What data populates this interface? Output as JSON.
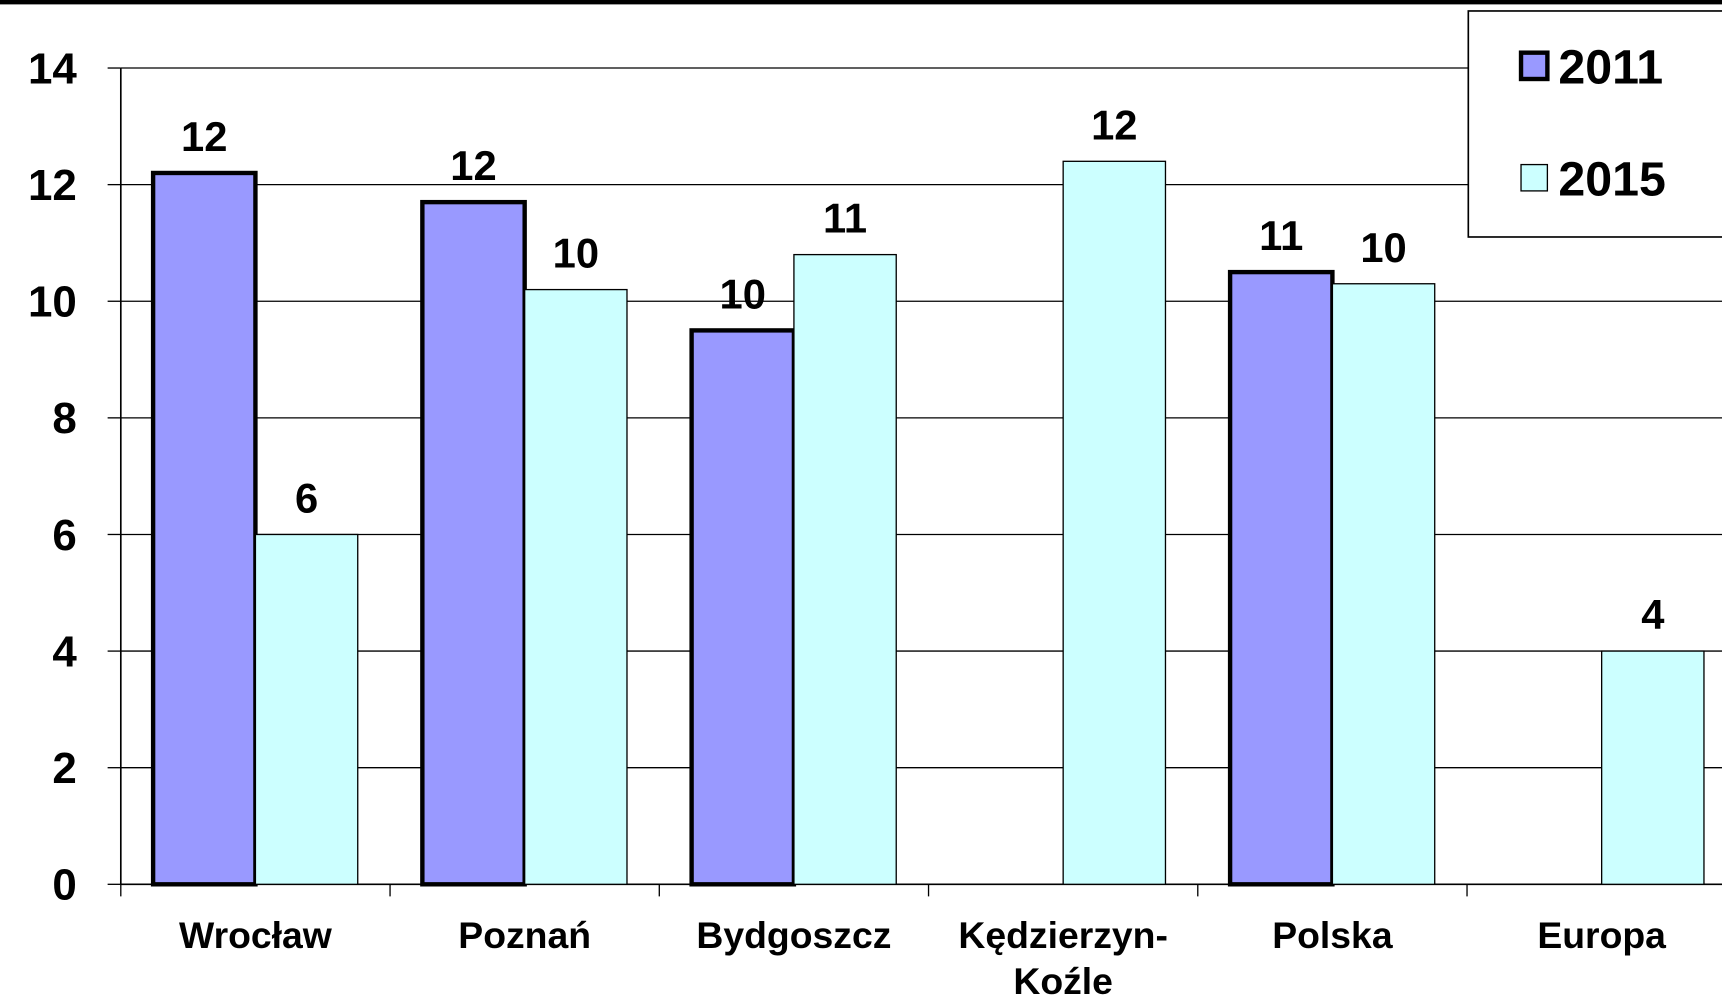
{
  "chart_data": {
    "type": "bar",
    "categories": [
      "Wrocław",
      "Poznań",
      "Bydgoszcz",
      "Kędzierzyn-Koźle",
      "Polska",
      "Europa"
    ],
    "series": [
      {
        "name": "2011",
        "color": "#9999ff",
        "values": [
          12.2,
          11.7,
          9.5,
          null,
          10.5,
          null
        ],
        "value_labels": [
          "12",
          "12",
          "10",
          null,
          "11",
          null
        ]
      },
      {
        "name": "2015",
        "color": "#ccffff",
        "values": [
          6.0,
          10.2,
          10.8,
          12.4,
          10.3,
          4.0
        ],
        "value_labels": [
          "6",
          "10",
          "11",
          "12",
          "10",
          "4"
        ]
      }
    ],
    "ylim": [
      0,
      14
    ],
    "yticks": [
      0,
      2,
      4,
      6,
      8,
      10,
      12,
      14
    ],
    "grid": true,
    "legend": "top-right"
  }
}
